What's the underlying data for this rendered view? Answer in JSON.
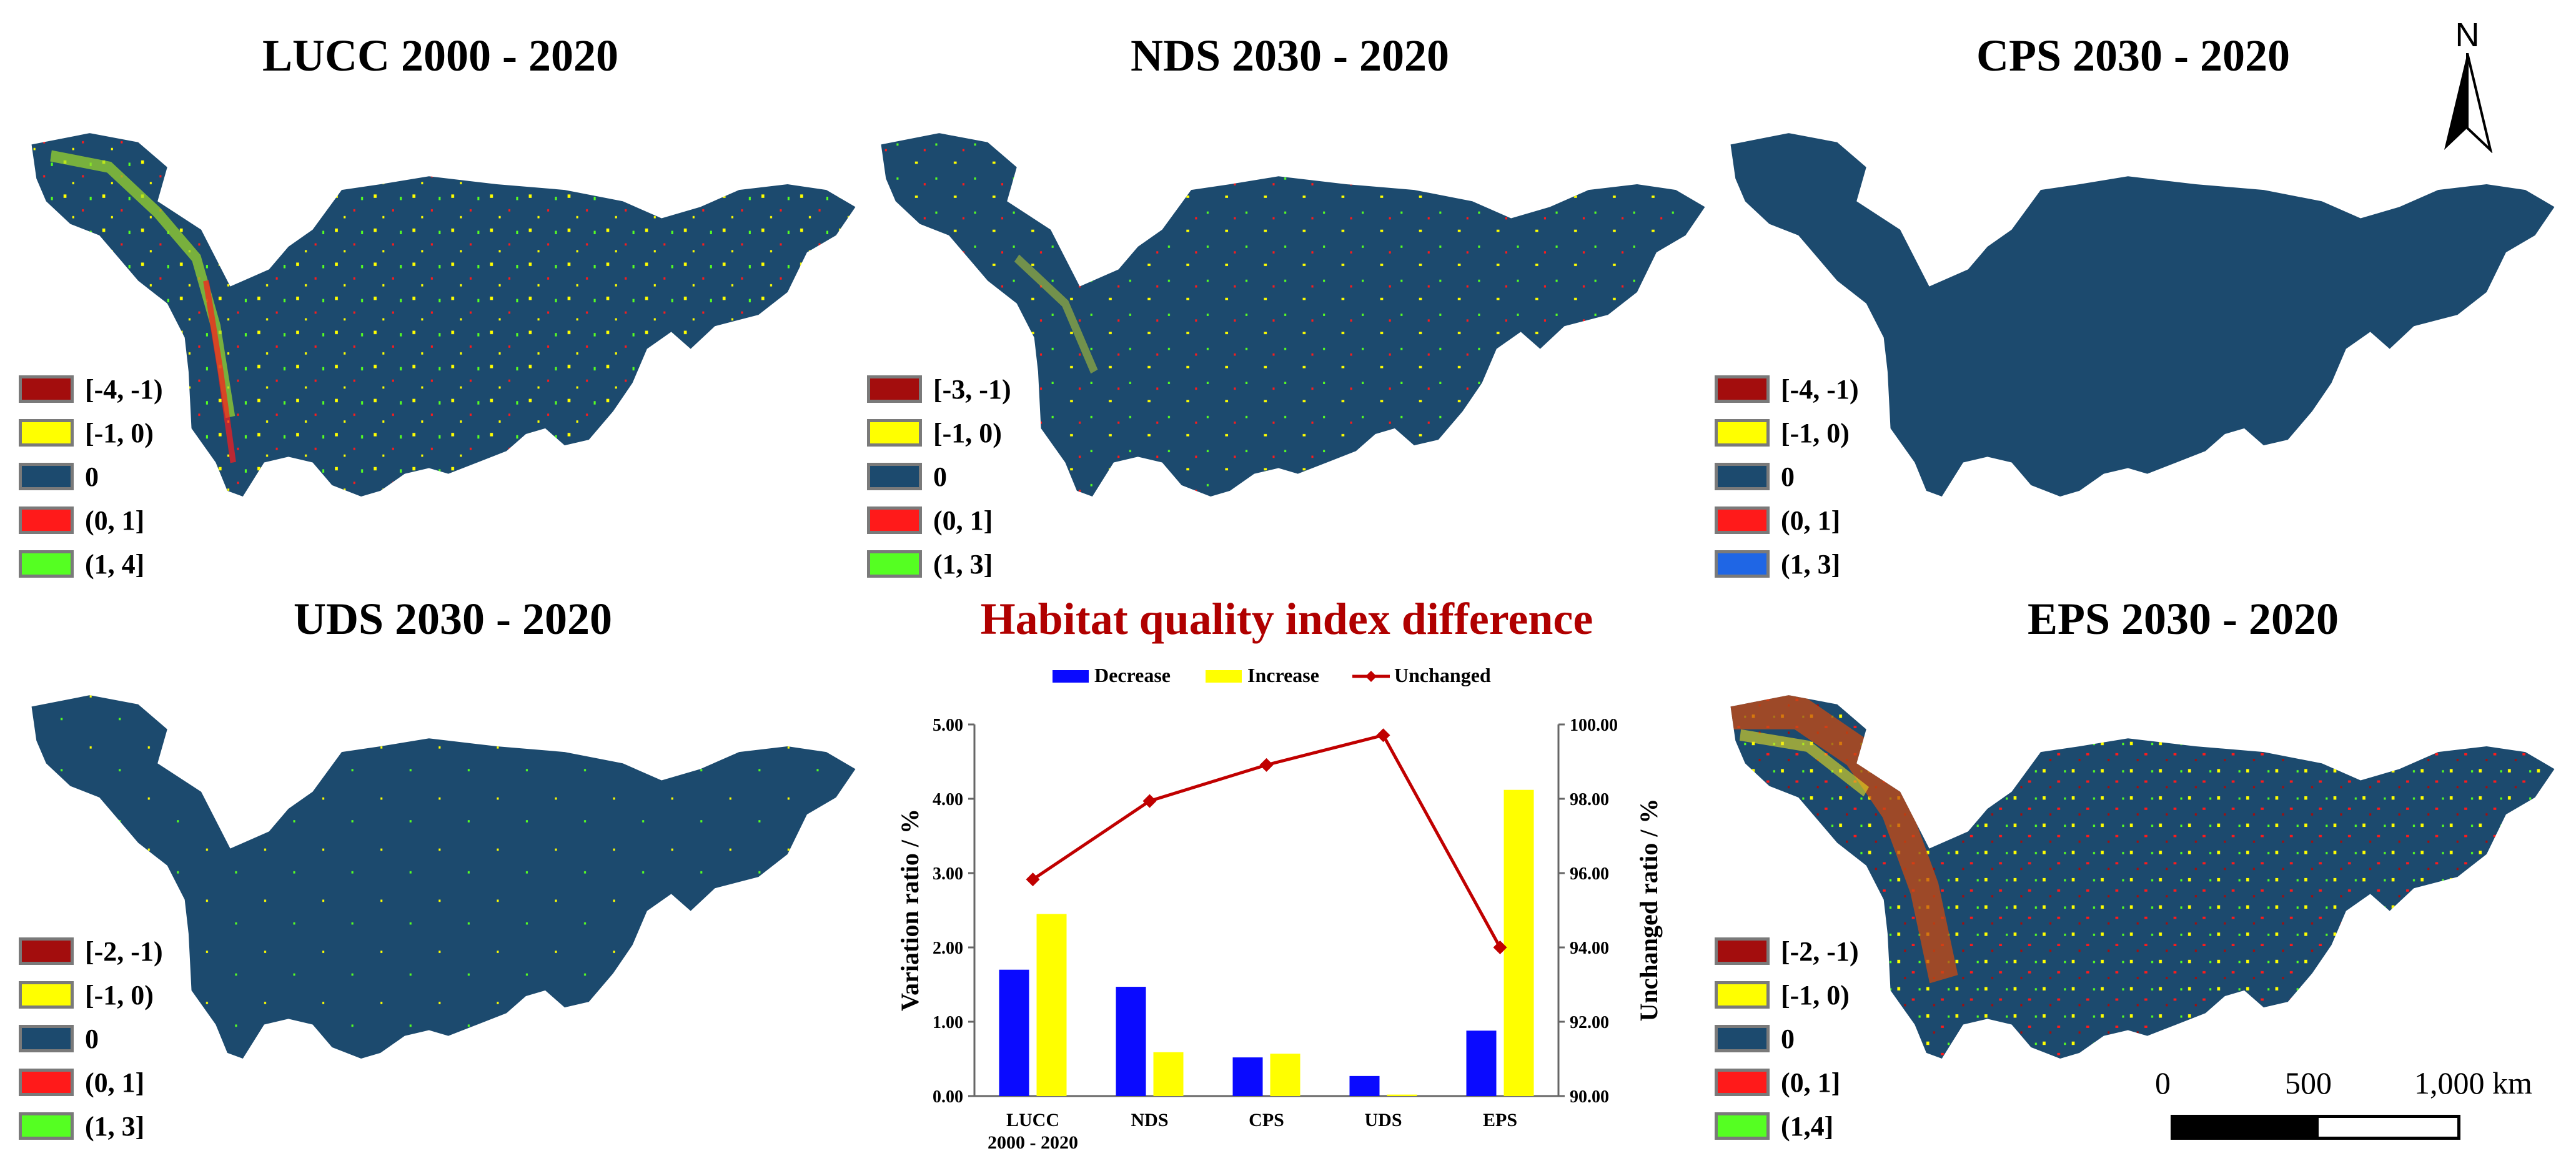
{
  "colors": {
    "ocean": "#1c4a6e",
    "dark_red": "#a30d0d",
    "yellow": "#ffff00",
    "red": "#ff1a1a",
    "green": "#55ff22",
    "blue": "#1f66e5",
    "title_red": "#b00000"
  },
  "panels": [
    {
      "id": "lucc",
      "title": "LUCC 2000 - 2020",
      "legend": [
        {
          "label": "[-4, -1)",
          "color": "#a30d0d"
        },
        {
          "label": "[-1, 0)",
          "color": "#ffff00"
        },
        {
          "label": "0",
          "color": "#1c4a6e"
        },
        {
          "label": "(0, 1]",
          "color": "#ff1a1a"
        },
        {
          "label": "(1, 4]",
          "color": "#55ff22"
        }
      ]
    },
    {
      "id": "nds",
      "title": "NDS 2030 - 2020",
      "legend": [
        {
          "label": "[-3, -1)",
          "color": "#a30d0d"
        },
        {
          "label": "[-1, 0)",
          "color": "#ffff00"
        },
        {
          "label": "0",
          "color": "#1c4a6e"
        },
        {
          "label": "(0, 1]",
          "color": "#ff1a1a"
        },
        {
          "label": "(1, 3]",
          "color": "#55ff22"
        }
      ]
    },
    {
      "id": "cps",
      "title": "CPS 2030 - 2020",
      "legend": [
        {
          "label": "[-4, -1)",
          "color": "#a30d0d"
        },
        {
          "label": "[-1, 0)",
          "color": "#ffff00"
        },
        {
          "label": "0",
          "color": "#1c4a6e"
        },
        {
          "label": "(0, 1]",
          "color": "#ff1a1a"
        },
        {
          "label": "(1, 3]",
          "color": "#1f66e5"
        }
      ]
    },
    {
      "id": "uds",
      "title": "UDS 2030 - 2020",
      "legend": [
        {
          "label": "[-2, -1)",
          "color": "#a30d0d"
        },
        {
          "label": "[-1, 0)",
          "color": "#ffff00"
        },
        {
          "label": "0",
          "color": "#1c4a6e"
        },
        {
          "label": "(0, 1]",
          "color": "#ff1a1a"
        },
        {
          "label": "(1, 3]",
          "color": "#55ff22"
        }
      ]
    },
    {
      "id": "eps",
      "title": "EPS 2030 - 2020",
      "legend": [
        {
          "label": "[-2, -1)",
          "color": "#a30d0d"
        },
        {
          "label": "[-1, 0)",
          "color": "#ffff00"
        },
        {
          "label": "0",
          "color": "#1c4a6e"
        },
        {
          "label": "(0, 1]",
          "color": "#ff1a1a"
        },
        {
          "label": "(1,4]",
          "color": "#55ff22"
        }
      ]
    }
  ],
  "north_arrow": {
    "label": "N"
  },
  "scale_bar": {
    "labels": [
      "0",
      "500",
      "1,000 km"
    ]
  },
  "chart_data": {
    "type": "bar",
    "title": "Habitat quality index difference",
    "categories": [
      "LUCC 2000 - 2020",
      "NDS",
      "CPS",
      "UDS",
      "EPS"
    ],
    "category_lines": [
      [
        "LUCC",
        "2000 - 2020"
      ],
      [
        "NDS"
      ],
      [
        "CPS"
      ],
      [
        "UDS"
      ],
      [
        "EPS"
      ]
    ],
    "series": [
      {
        "name": "Decrease",
        "type": "bar",
        "axis": "left",
        "color": "#0a0aff",
        "values": [
          1.7,
          1.47,
          0.52,
          0.27,
          0.88
        ]
      },
      {
        "name": "Increase",
        "type": "bar",
        "axis": "left",
        "color": "#ffff00",
        "values": [
          2.45,
          0.59,
          0.57,
          0.02,
          4.12
        ]
      },
      {
        "name": "Unchanged",
        "type": "line",
        "axis": "right",
        "color": "#c00000",
        "values": [
          95.83,
          97.94,
          98.91,
          99.71,
          94.0
        ]
      }
    ],
    "ylabel": "Variation ratio / %",
    "ylabel_right": "Unchanged ratio / %",
    "ylim": [
      0,
      5
    ],
    "ylim_right": [
      90,
      100
    ],
    "yticks": [
      "0.00",
      "1.00",
      "2.00",
      "3.00",
      "4.00",
      "5.00"
    ],
    "yticks_right": [
      "90.00",
      "92.00",
      "94.00",
      "96.00",
      "98.00",
      "100.00"
    ],
    "legend_position": "top"
  }
}
